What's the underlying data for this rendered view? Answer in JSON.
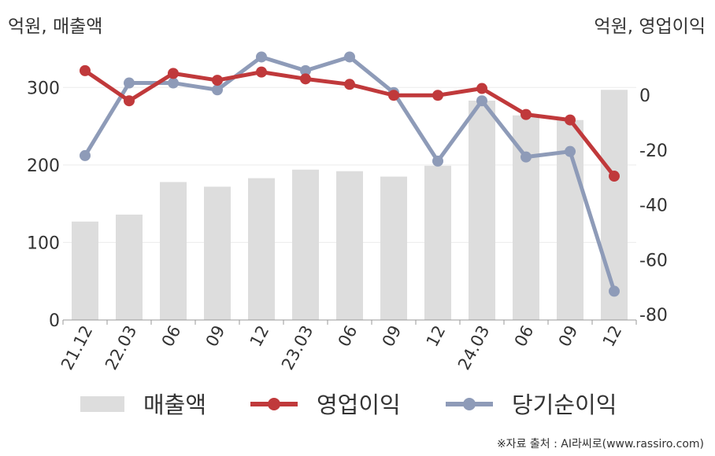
{
  "chart_data": {
    "type": "bar+line",
    "categories": [
      "21.12",
      "22.03",
      "06",
      "09",
      "12",
      "23.03",
      "06",
      "09",
      "12",
      "24.03",
      "06",
      "09",
      "12"
    ],
    "left_axis": {
      "label": "억원, 매출액",
      "ticks": [
        0,
        100,
        200,
        300
      ],
      "ylim": [
        0,
        350
      ]
    },
    "right_axis": {
      "label": "억원, 영업이익",
      "ticks": [
        0,
        -20,
        -40,
        -60,
        -80
      ],
      "ylim": [
        -82,
        17
      ]
    },
    "series": [
      {
        "name": "매출액",
        "kind": "bar",
        "axis": "left",
        "color": "#dddddd",
        "values": [
          127,
          136,
          178,
          172,
          183,
          194,
          192,
          185,
          199,
          283,
          264,
          258,
          297
        ]
      },
      {
        "name": "영업이익",
        "kind": "line",
        "axis": "right",
        "color": "#c0393b",
        "values": [
          9,
          -2,
          8,
          5.5,
          8.5,
          6,
          4,
          0,
          0,
          2.5,
          -7,
          -9,
          -29.5
        ]
      },
      {
        "name": "당기순이익",
        "kind": "line",
        "axis": "right",
        "color": "#8e9bb8",
        "values": [
          -22,
          4.5,
          4.5,
          2,
          14,
          9,
          14,
          1,
          -24,
          -2,
          -22.5,
          -20.5,
          -71.5
        ]
      }
    ],
    "grid": true,
    "legend": "bottom"
  },
  "source_text": "※자료 출처 : AI라씨로(www.rassiro.com)"
}
